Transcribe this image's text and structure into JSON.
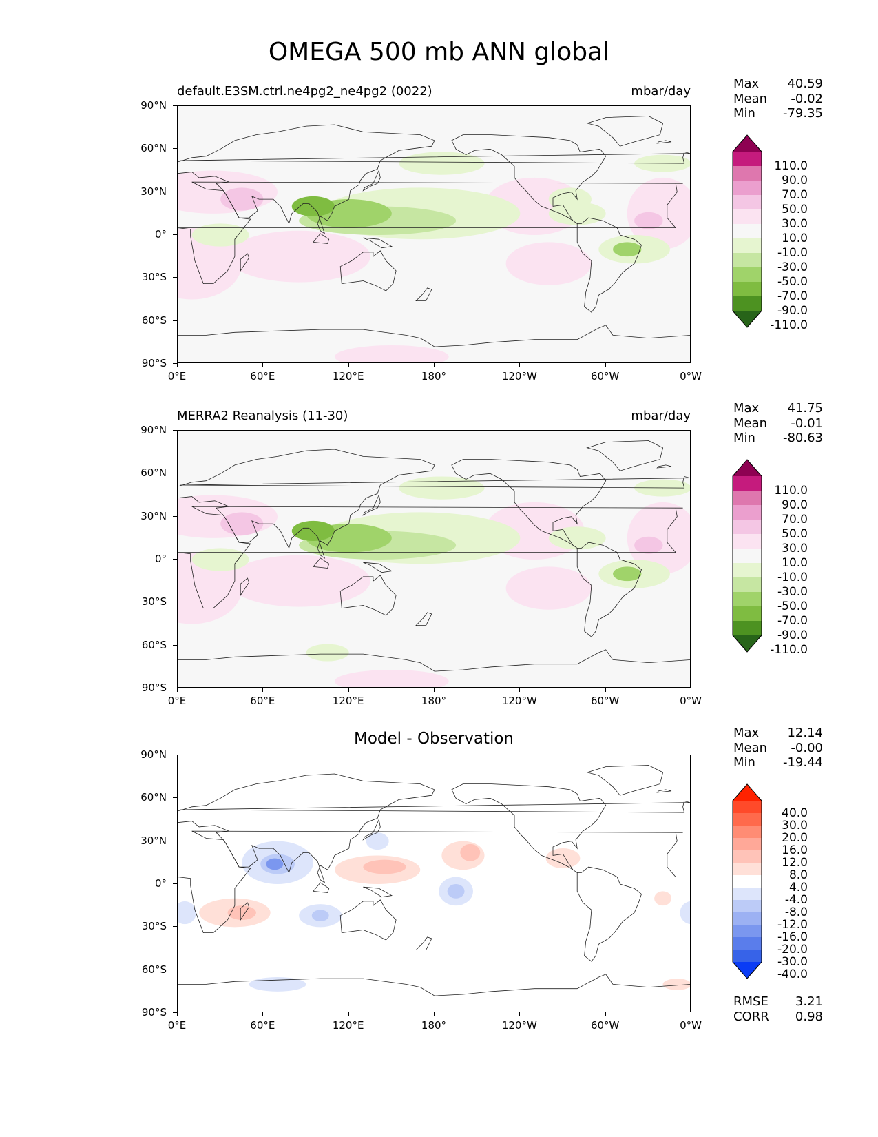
{
  "title": "OMEGA 500 mb ANN global",
  "lat_labels": [
    "90°N",
    "60°N",
    "30°N",
    "0°",
    "30°S",
    "60°S",
    "90°S"
  ],
  "lon_labels": [
    "0°E",
    "60°E",
    "120°E",
    "180°",
    "120°W",
    "60°W",
    "0°W"
  ],
  "panels": [
    {
      "title_left": "default.E3SM.ctrl.ne4pg2_ne4pg2 (0022)",
      "title_right": "mbar/day",
      "title_center": "",
      "stats": {
        "max_label": "Max",
        "max": "40.59",
        "mean_label": "Mean",
        "mean": "-0.02",
        "min_label": "Min",
        "min": "-79.35"
      },
      "colorbar": {
        "labels": [
          "110.0",
          "90.0",
          "70.0",
          "50.0",
          "30.0",
          "10.0",
          "-10.0",
          "-30.0",
          "-50.0",
          "-70.0",
          "-90.0",
          "-110.0"
        ],
        "colors": [
          "#8e0152",
          "#c51b7d",
          "#de77ae",
          "#eb9fce",
          "#f4c6e4",
          "#fbe3f1",
          "#f7f7f7",
          "#e6f5d0",
          "#c6e6a2",
          "#a0d36a",
          "#7fbc41",
          "#4d9221",
          "#276419"
        ]
      }
    },
    {
      "title_left": "MERRA2 Reanalysis (11-30)",
      "title_right": "mbar/day",
      "title_center": "",
      "stats": {
        "max_label": "Max",
        "max": "41.75",
        "mean_label": "Mean",
        "mean": "-0.01",
        "min_label": "Min",
        "min": "-80.63"
      },
      "colorbar": {
        "labels": [
          "110.0",
          "90.0",
          "70.0",
          "50.0",
          "30.0",
          "10.0",
          "-10.0",
          "-30.0",
          "-50.0",
          "-70.0",
          "-90.0",
          "-110.0"
        ],
        "colors": [
          "#8e0152",
          "#c51b7d",
          "#de77ae",
          "#eb9fce",
          "#f4c6e4",
          "#fbe3f1",
          "#f7f7f7",
          "#e6f5d0",
          "#c6e6a2",
          "#a0d36a",
          "#7fbc41",
          "#4d9221",
          "#276419"
        ]
      }
    },
    {
      "title_left": "",
      "title_right": "",
      "title_center": "Model - Observation",
      "stats": {
        "max_label": "Max",
        "max": "12.14",
        "mean_label": "Mean",
        "mean": "-0.00",
        "min_label": "Min",
        "min": "-19.44"
      },
      "colorbar": {
        "labels": [
          "40.0",
          "30.0",
          "20.0",
          "16.0",
          "12.0",
          "8.0",
          "4.0",
          "-4.0",
          "-8.0",
          "-12.0",
          "-16.0",
          "-20.0",
          "-30.0",
          "-40.0"
        ],
        "colors": [
          "#ff2200",
          "#ff4a2a",
          "#ff6a4c",
          "#ff8c74",
          "#ffa898",
          "#ffc3b8",
          "#ffe0d8",
          "#ffffff",
          "#dde5fb",
          "#bccbf7",
          "#9cb1f3",
          "#7b97ef",
          "#5a7deb",
          "#3763e8",
          "#0a3cf5"
        ]
      },
      "rmse_label": "RMSE",
      "rmse": "3.21",
      "corr_label": "CORR",
      "corr": "0.98"
    }
  ]
}
